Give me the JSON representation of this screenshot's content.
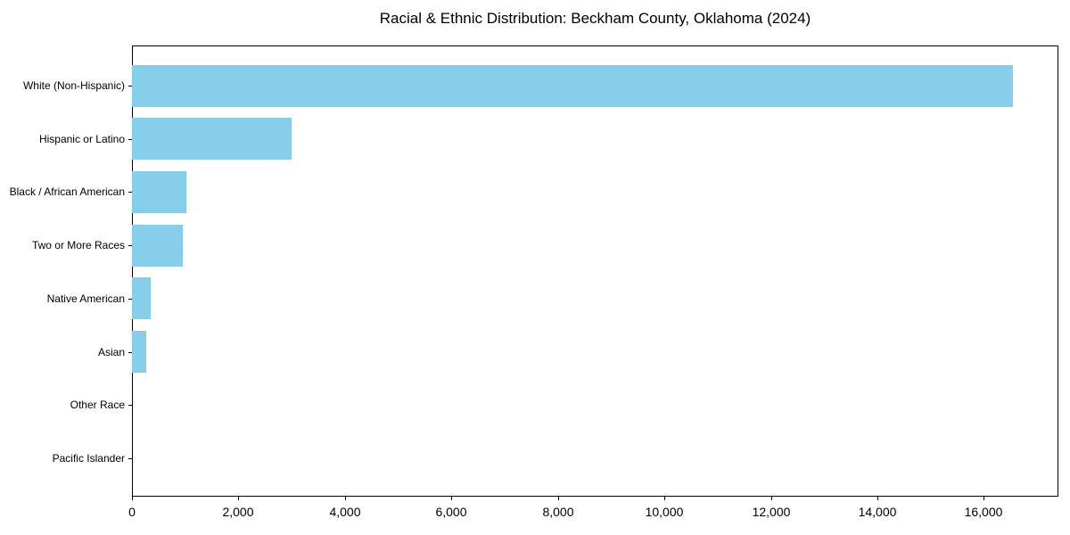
{
  "title": "Racial & Ethnic Distribution: Beckham County, Oklahoma (2024)",
  "colors": {
    "bar": "#87CEEB",
    "axis": "#000000",
    "text": "#000000",
    "background": "#FFFFFF"
  },
  "chart_data": {
    "type": "bar",
    "orientation": "horizontal",
    "title": "Racial & Ethnic Distribution: Beckham County, Oklahoma (2024)",
    "categories": [
      "White (Non-Hispanic)",
      "Hispanic or Latino",
      "Black / African American",
      "Two or More Races",
      "Native American",
      "Asian",
      "Other Race",
      "Pacific Islander"
    ],
    "values": [
      16550,
      3000,
      1020,
      950,
      350,
      270,
      0,
      0
    ],
    "xlabel": "",
    "ylabel": "",
    "xlim": [
      0,
      17400
    ],
    "x_ticks": [
      0,
      2000,
      4000,
      6000,
      8000,
      10000,
      12000,
      14000,
      16000
    ],
    "x_tick_labels": [
      "0",
      "2,000",
      "4,000",
      "6,000",
      "8,000",
      "10,000",
      "12,000",
      "14,000",
      "16,000"
    ],
    "bar_color": "#87CEEB",
    "grid": false,
    "legend": null
  }
}
